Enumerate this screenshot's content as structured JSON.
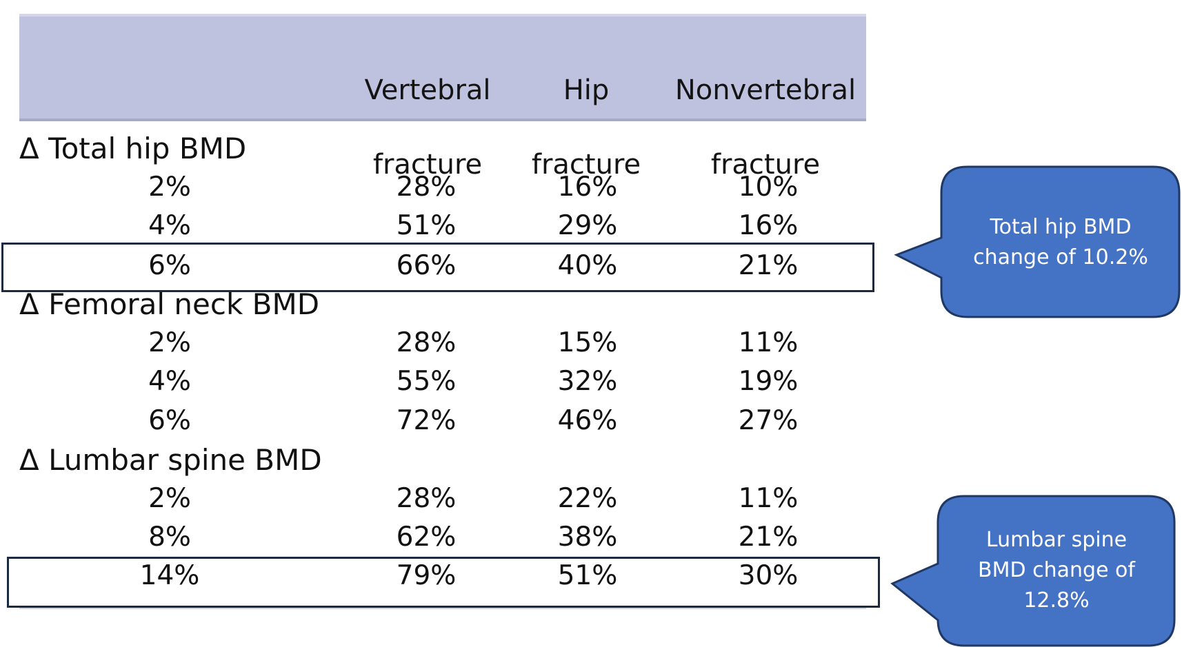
{
  "table": {
    "columns": [
      {
        "line1": "Vertebral",
        "line2": "fracture"
      },
      {
        "line1": "Hip",
        "line2": "fracture"
      },
      {
        "line1": "Nonvertebral",
        "line2": "fracture"
      }
    ],
    "sections": [
      {
        "label": "Δ Total hip BMD",
        "rows": [
          {
            "change": "2%",
            "vertebral": "28%",
            "hip": "16%",
            "nonvertebral": "10%"
          },
          {
            "change": "4%",
            "vertebral": "51%",
            "hip": "29%",
            "nonvertebral": "16%"
          },
          {
            "change": "6%",
            "vertebral": "66%",
            "hip": "40%",
            "nonvertebral": "21%"
          }
        ]
      },
      {
        "label": "Δ Femoral neck BMD",
        "rows": [
          {
            "change": "2%",
            "vertebral": "28%",
            "hip": "15%",
            "nonvertebral": "11%"
          },
          {
            "change": "4%",
            "vertebral": "55%",
            "hip": "32%",
            "nonvertebral": "19%"
          },
          {
            "change": "6%",
            "vertebral": "72%",
            "hip": "46%",
            "nonvertebral": "27%"
          }
        ]
      },
      {
        "label": "Δ Lumbar spine BMD",
        "rows": [
          {
            "change": "2%",
            "vertebral": "28%",
            "hip": "22%",
            "nonvertebral": "11%"
          },
          {
            "change": "8%",
            "vertebral": "62%",
            "hip": "38%",
            "nonvertebral": "21%"
          },
          {
            "change": "14%",
            "vertebral": "79%",
            "hip": "51%",
            "nonvertebral": "30%"
          }
        ]
      }
    ]
  },
  "callouts": [
    {
      "lines": [
        "Total hip BMD",
        "change of 10.2%"
      ]
    },
    {
      "lines": [
        "Lumbar spine",
        "BMD change of",
        "12.8%"
      ]
    }
  ],
  "colors": {
    "header_band": "#bfc2de",
    "callout_fill": "#4472c4",
    "callout_border": "#1f3864",
    "highlight_border": "#1b2a41"
  }
}
